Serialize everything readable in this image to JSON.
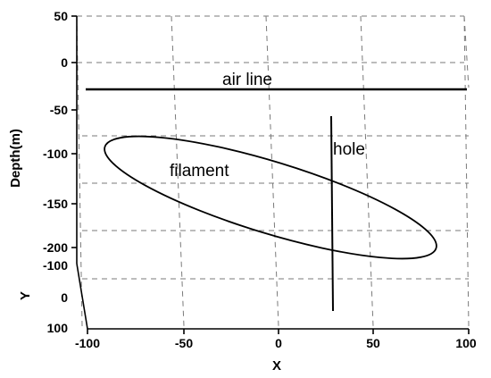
{
  "chart_data": {
    "type": "3d-diagram",
    "xlabel": "X",
    "ylabel": "Y",
    "zlabel": "Depth(m)",
    "x_ticks": [
      "-100",
      "-50",
      "0",
      "50",
      "100"
    ],
    "y_ticks": [
      "-100",
      "0",
      "100"
    ],
    "z_ticks": [
      "50",
      "0",
      "-50",
      "-100",
      "-150",
      "-200"
    ],
    "xlim": [
      -100,
      100
    ],
    "ylim": [
      -100,
      100
    ],
    "zlim": [
      -230,
      50
    ],
    "grid": true,
    "annotations": {
      "air_line": "air line",
      "filament": "filament",
      "hole": "hole"
    }
  }
}
